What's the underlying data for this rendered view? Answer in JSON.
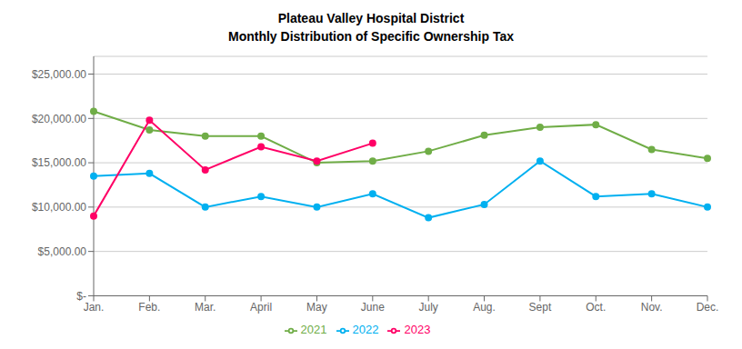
{
  "chart_data": {
    "type": "line",
    "title": "Plateau Valley Hospital District",
    "subtitle": "Monthly Distribution of Specific Ownership Tax",
    "categories": [
      "Jan.",
      "Feb.",
      "Mar.",
      "April",
      "May",
      "June",
      "July",
      "Aug.",
      "Sept",
      "Oct.",
      "Nov.",
      "Dec."
    ],
    "series": [
      {
        "name": "2021",
        "color": "#70AD47",
        "marker": "circle",
        "values": [
          20800,
          18700,
          18000,
          18000,
          15000,
          15200,
          16300,
          18100,
          19000,
          19300,
          16500,
          15500
        ]
      },
      {
        "name": "2022",
        "color": "#00B0F0",
        "marker": "circle",
        "values": [
          13500,
          13800,
          10000,
          11200,
          10000,
          11500,
          8800,
          10300,
          15200,
          11200,
          11500,
          10000
        ]
      },
      {
        "name": "2023",
        "color": "#FF0066",
        "marker": "circle",
        "values": [
          9000,
          19800,
          14200,
          16800,
          15200,
          17200,
          null,
          null,
          null,
          null,
          null,
          null
        ]
      }
    ],
    "ylim": [
      0,
      27000
    ],
    "yticks": [
      {
        "value": 0,
        "label": "$-"
      },
      {
        "value": 5000,
        "label": "$5,000.00"
      },
      {
        "value": 10000,
        "label": "$10,000.00"
      },
      {
        "value": 15000,
        "label": "$15,000.00"
      },
      {
        "value": 20000,
        "label": "$20,000.00"
      },
      {
        "value": 25000,
        "label": "$25,000.00"
      }
    ],
    "grid": true,
    "legend": "bottom"
  }
}
